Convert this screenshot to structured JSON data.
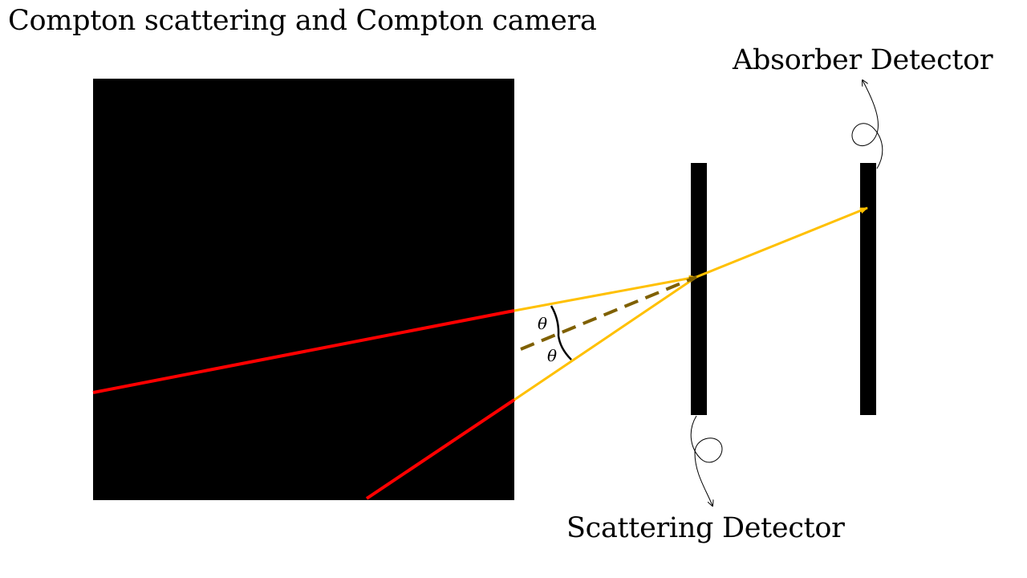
{
  "slide": {
    "title": "Compton scattering and Compton camera"
  },
  "labels": {
    "absorber": "Absorber Detector",
    "scattering": "Scattering Detector",
    "theta_upper": "θ",
    "theta_lower": "θ"
  },
  "colors": {
    "background": "#ffffff",
    "source_block": "#000000",
    "incoming_ray": "#ff0000",
    "scattered_ray": "#ffc000",
    "dashed_axis": "#7f6000",
    "detector": "#000000"
  },
  "icons": {
    "absorber_pointer": "curly-arrow-icon",
    "scattering_pointer": "curly-arrow-icon"
  }
}
